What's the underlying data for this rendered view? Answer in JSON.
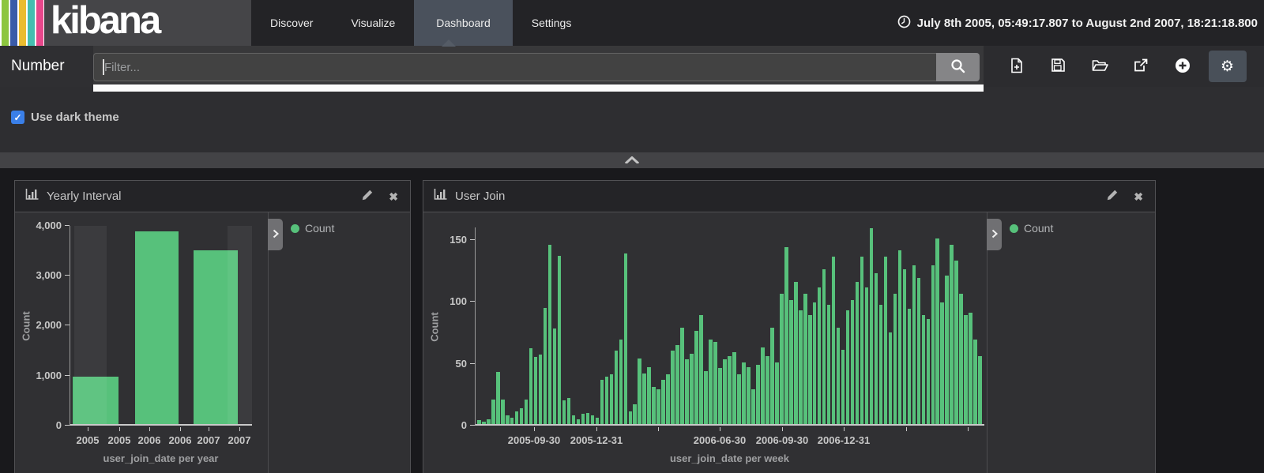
{
  "nav": {
    "brand": "kibana",
    "items": [
      {
        "label": "Discover",
        "active": false
      },
      {
        "label": "Visualize",
        "active": false
      },
      {
        "label": "Dashboard",
        "active": true
      },
      {
        "label": "Settings",
        "active": false
      }
    ],
    "time_range": "July 8th 2005, 05:49:17.807 to August 2nd 2007, 18:21:18.800"
  },
  "filter_bar": {
    "context_label": "Number",
    "input_value": "",
    "placeholder": "Filter...",
    "actions": [
      {
        "name": "new-dashboard",
        "icon": "file-plus-icon"
      },
      {
        "name": "save-dashboard",
        "icon": "floppy-icon"
      },
      {
        "name": "open-dashboard",
        "icon": "folder-open-icon"
      },
      {
        "name": "share-dashboard",
        "icon": "external-link-icon"
      },
      {
        "name": "add-visualization",
        "icon": "plus-circle-icon",
        "active": false
      },
      {
        "name": "dashboard-settings",
        "icon": "gear-icon",
        "active": true
      }
    ]
  },
  "options_panel": {
    "dark_theme_label": "Use dark theme",
    "dark_theme_checked": true
  },
  "accent_colors": {
    "bar_green": "#57c17b",
    "checkbox_blue": "#3a7fe8",
    "active_tab": "#4a515c"
  },
  "chart_data": [
    {
      "type": "bar",
      "title": "Yearly Interval",
      "categories": [
        "2005",
        "2006",
        "2007"
      ],
      "values": [
        950,
        3850,
        3480
      ],
      "x_tick_labels": [
        "2005",
        "2005",
        "2006",
        "2006",
        "2007",
        "2007"
      ],
      "xlabel": "user_join_date per year",
      "ylabel": "Count",
      "ylim": [
        0,
        4000
      ],
      "yticks": [
        0,
        1000,
        2000,
        3000,
        4000
      ],
      "grid": false,
      "legend": {
        "label": "Count",
        "color": "#57c17b",
        "position": "right"
      },
      "notes": "first and last year buckets are partial and drawn with lighter endzone shading"
    },
    {
      "type": "bar",
      "title": "User Join",
      "x_unit": "week",
      "values": [
        3,
        2,
        4,
        20,
        42,
        20,
        7,
        5,
        10,
        13,
        20,
        61,
        54,
        56,
        94,
        145,
        77,
        136,
        19,
        21,
        7,
        4,
        8,
        9,
        7,
        5,
        36,
        38,
        40,
        59,
        68,
        138,
        10,
        16,
        53,
        41,
        46,
        30,
        28,
        36,
        40,
        59,
        64,
        78,
        52,
        57,
        75,
        88,
        43,
        68,
        66,
        45,
        52,
        55,
        58,
        40,
        50,
        46,
        28,
        48,
        62,
        55,
        78,
        50,
        105,
        143,
        100,
        115,
        92,
        105,
        88,
        98,
        110,
        125,
        96,
        135,
        78,
        60,
        92,
        100,
        115,
        135,
        110,
        158,
        122,
        96,
        135,
        74,
        105,
        140,
        125,
        93,
        128,
        118,
        88,
        85,
        128,
        150,
        98,
        120,
        145,
        132,
        105,
        88,
        90,
        68,
        55
      ],
      "x_tick_labels": [
        {
          "index": 12,
          "label": "2005-09-30"
        },
        {
          "index": 25,
          "label": "2005-12-31"
        },
        {
          "index": 38,
          "label": ""
        },
        {
          "index": 51,
          "label": "2006-06-30"
        },
        {
          "index": 64,
          "label": "2006-09-30"
        },
        {
          "index": 77,
          "label": "2006-12-31"
        },
        {
          "index": 90,
          "label": ""
        },
        {
          "index": 103,
          "label": ""
        }
      ],
      "xlabel": "user_join_date per week",
      "ylabel": "Count",
      "ylim": [
        0,
        160
      ],
      "yticks": [
        0,
        50,
        100,
        150
      ],
      "grid": false,
      "legend": {
        "label": "Count",
        "color": "#57c17b",
        "position": "right"
      }
    }
  ]
}
